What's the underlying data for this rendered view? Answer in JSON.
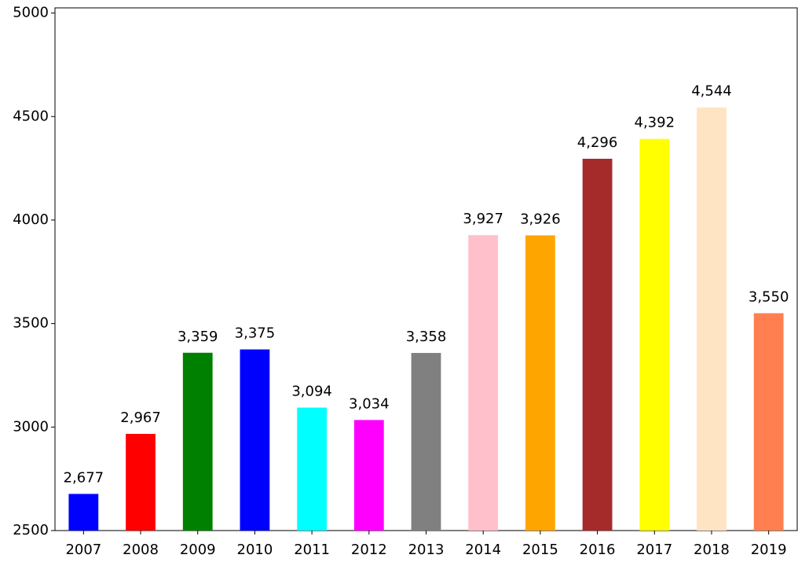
{
  "chart_data": {
    "type": "bar",
    "categories": [
      "2007",
      "2008",
      "2009",
      "2010",
      "2011",
      "2012",
      "2013",
      "2014",
      "2015",
      "2016",
      "2017",
      "2018",
      "2019"
    ],
    "values": [
      2677,
      2967,
      3359,
      3375,
      3094,
      3034,
      3358,
      3927,
      3926,
      4296,
      4392,
      4544,
      3550
    ],
    "value_labels": [
      "2,677",
      "2,967",
      "3,359",
      "3,375",
      "3,094",
      "3,034",
      "3,358",
      "3,927",
      "3,926",
      "4,296",
      "4,392",
      "4,544",
      "3,550"
    ],
    "colors": [
      "#0000ff",
      "#ff0000",
      "#008000",
      "#0000ff",
      "#00ffff",
      "#ff00ff",
      "#808080",
      "#ffc0cb",
      "#ffa500",
      "#a52a2a",
      "#ffff00",
      "#ffe4c4",
      "#ff7f50"
    ],
    "ylim": [
      2500,
      5025
    ],
    "yticks": [
      2500,
      3000,
      3500,
      4000,
      4500,
      5000
    ],
    "grid": false
  }
}
